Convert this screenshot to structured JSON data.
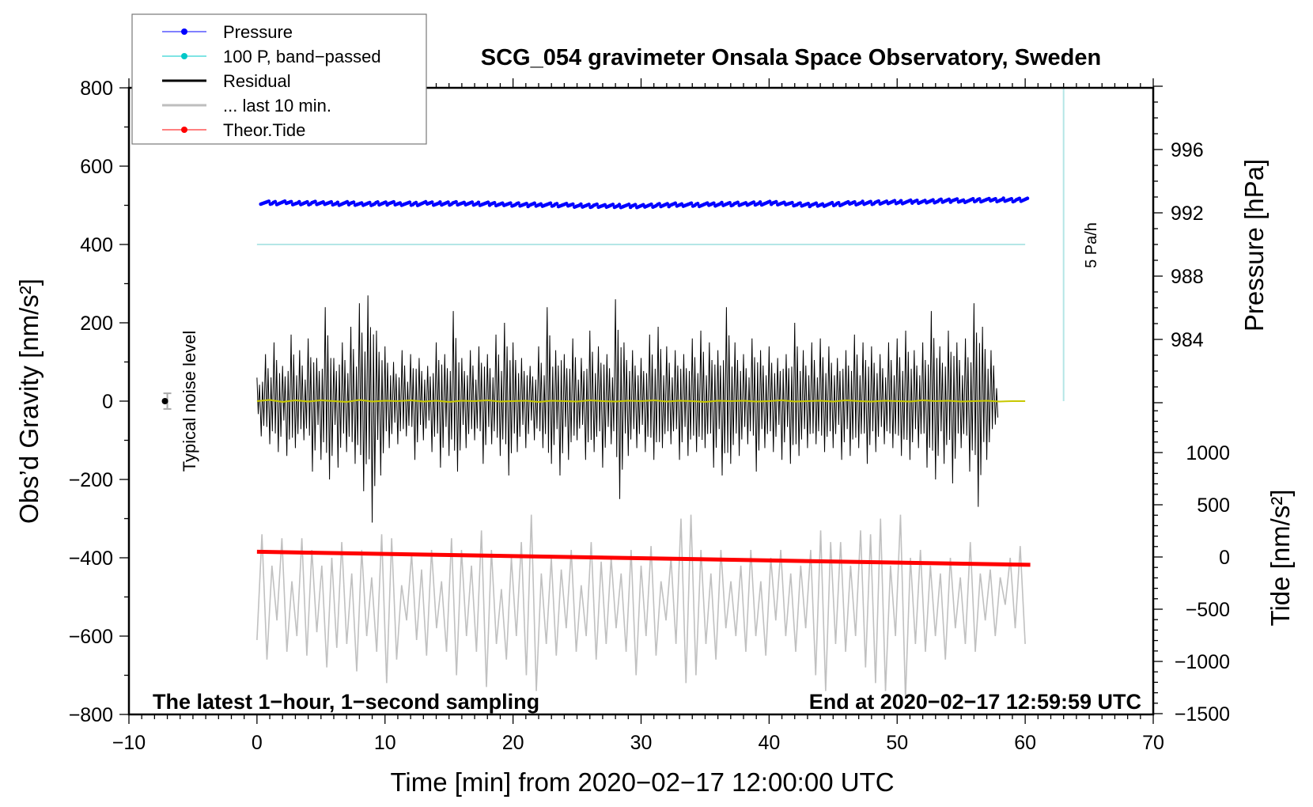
{
  "chart_data": {
    "type": "line",
    "title": "SCG_054 gravimeter Onsala Space Observatory, Sweden",
    "xlabel": "Time [min] from 2020−02−17 12:00:00 UTC",
    "ylabel": "Obs’d Gravity [nm/s²]",
    "ylabel_right_top": "Pressure [hPa]",
    "ylabel_right_bottom": "Tide [nm/s²]",
    "xlim": [
      -10,
      70
    ],
    "ylim": [
      -800,
      800
    ],
    "pressure_lim": [
      980,
      1000
    ],
    "tide_lim": [
      -1500,
      1500
    ],
    "x_ticks": [
      "−10",
      "0",
      "10",
      "20",
      "30",
      "40",
      "50",
      "60",
      "70"
    ],
    "x_tick_values": [
      -10,
      0,
      10,
      20,
      30,
      40,
      50,
      60,
      70
    ],
    "y_ticks": [
      "−800",
      "−600",
      "−400",
      "−200",
      "0",
      "200",
      "400",
      "600",
      "800"
    ],
    "y_tick_values": [
      -800,
      -600,
      -400,
      -200,
      0,
      200,
      400,
      600,
      800
    ],
    "pressure_ticks": [
      "996",
      "992",
      "988",
      "984"
    ],
    "pressure_tick_values": [
      996,
      992,
      988,
      984
    ],
    "tide_ticks": [
      "1000",
      "500",
      "0",
      "−500",
      "−1000",
      "−1500"
    ],
    "tide_tick_values": [
      1000,
      500,
      0,
      -500,
      -1000,
      -1500
    ],
    "legend": {
      "placement": "top-left",
      "entries": [
        {
          "label": "Pressure",
          "color": "#0000ff",
          "marker": true
        },
        {
          "label": "100 P, band−passed",
          "color": "#00c8c8",
          "marker": true
        },
        {
          "label": "Residual",
          "color": "#000000",
          "marker": false
        },
        {
          "label": "... last 10 min.",
          "color": "#bebebe",
          "marker": false
        },
        {
          "label": "Theor.Tide",
          "color": "#ff0000",
          "marker": true
        }
      ]
    },
    "annotations": {
      "bottom_left": "The latest 1−hour, 1−second sampling",
      "bottom_right": "End at 2020−02−17 12:59:59 UTC",
      "noise_label": "Typical noise level",
      "rate_label": "5 Pa/h"
    },
    "noise_level": {
      "x": -7,
      "y": 0,
      "err": 20
    },
    "rate_bar": {
      "x": 63,
      "y_from": 0,
      "y_to": 800
    },
    "bandpassed_pressure_line": {
      "x_from": 0,
      "x_to": 60,
      "y": 400
    },
    "series": {
      "pressure_hpa_per_minute": [
        992.65,
        992.62,
        992.64,
        992.6,
        992.62,
        992.6,
        992.58,
        992.6,
        992.56,
        992.58,
        992.6,
        992.58,
        992.56,
        992.6,
        992.58,
        992.6,
        992.57,
        992.58,
        992.56,
        992.55,
        992.52,
        992.5,
        992.52,
        992.5,
        992.48,
        992.45,
        992.45,
        992.42,
        992.44,
        992.43,
        992.45,
        992.47,
        992.5,
        992.52,
        992.5,
        992.52,
        992.55,
        992.56,
        992.55,
        992.6,
        992.62,
        992.6,
        992.52,
        992.5,
        992.52,
        992.55,
        992.6,
        992.62,
        992.64,
        992.65,
        992.68,
        992.7,
        992.72,
        992.75,
        992.78,
        992.76,
        992.8,
        992.8,
        992.82,
        992.8,
        992.84
      ],
      "residual_every_20s": [
        60,
        -90,
        120,
        -110,
        150,
        -130,
        90,
        -140,
        170,
        -120,
        130,
        -100,
        160,
        -180,
        110,
        -150,
        240,
        -200,
        110,
        -170,
        150,
        -130,
        190,
        -160,
        250,
        -230,
        270,
        -310,
        180,
        -190,
        140,
        -120,
        100,
        -110,
        130,
        -90,
        120,
        -150,
        110,
        -100,
        90,
        -130,
        150,
        -170,
        120,
        -140,
        230,
        -180,
        110,
        -120,
        130,
        -100,
        140,
        -160,
        120,
        -110,
        170,
        -140,
        200,
        -190,
        150,
        -130,
        110,
        -120,
        90,
        -100,
        140,
        -120,
        240,
        -160,
        130,
        -190,
        120,
        -150,
        160,
        -100,
        110,
        -150,
        180,
        -130,
        140,
        -170,
        120,
        -110,
        260,
        -250,
        150,
        -140,
        130,
        -120,
        110,
        -130,
        170,
        -150,
        190,
        -120,
        140,
        -110,
        130,
        -150,
        120,
        -140,
        160,
        -130,
        180,
        -120,
        150,
        -170,
        130,
        -190,
        240,
        -160,
        150,
        -140,
        120,
        -110,
        160,
        -180,
        130,
        -120,
        140,
        -130,
        110,
        -150,
        120,
        -160,
        200,
        -140,
        130,
        -120,
        150,
        -110,
        160,
        -130,
        140,
        -120,
        110,
        -150,
        130,
        -140,
        170,
        -120,
        150,
        -160,
        140,
        -130,
        120,
        -110,
        150,
        -120,
        160,
        -140,
        180,
        -150,
        130,
        -120,
        150,
        -170,
        230,
        -200,
        140,
        -160,
        180,
        -210,
        150,
        -120,
        160,
        -180,
        250,
        -270,
        190,
        -150,
        130,
        -60
      ],
      "residual_low_pass_every_minute": [
        0,
        3,
        -2,
        2,
        -1,
        2,
        0,
        -2,
        3,
        -1,
        1,
        0,
        2,
        -1,
        1,
        -2,
        1,
        0,
        2,
        -1,
        0,
        1,
        -2,
        1,
        0,
        -1,
        2,
        0,
        -1,
        1,
        0,
        2,
        -1,
        1,
        0,
        -2,
        1,
        0,
        1,
        -1,
        0,
        2,
        -1,
        0,
        1,
        -1,
        2,
        0,
        -1,
        1,
        0,
        -1,
        2,
        0,
        1,
        -1,
        0,
        1,
        -1,
        0,
        0
      ],
      "last_10_min_every_20s": [
        -610,
        -340,
        -660,
        -420,
        -560,
        -350,
        -640,
        -460,
        -600,
        -350,
        -650,
        -380,
        -590,
        -420,
        -680,
        -400,
        -630,
        -360,
        -620,
        -440,
        -690,
        -380,
        -600,
        -450,
        -640,
        -340,
        -720,
        -350,
        -660,
        -470,
        -560,
        -390,
        -610,
        -430,
        -650,
        -380,
        -580,
        -460,
        -640,
        -350,
        -700,
        -380,
        -600,
        -420,
        -640,
        -330,
        -730,
        -380,
        -620,
        -480,
        -660,
        -400,
        -600,
        -360,
        -700,
        -290,
        -740,
        -440,
        -620,
        -400,
        -650,
        -430,
        -580,
        -380,
        -640,
        -470,
        -600,
        -360,
        -660,
        -410,
        -620,
        -400,
        -580,
        -440,
        -640,
        -380,
        -700,
        -420,
        -600,
        -370,
        -650,
        -460,
        -560,
        -400,
        -620,
        -300,
        -720,
        -290,
        -700,
        -380,
        -620,
        -440,
        -660,
        -380,
        -580,
        -460,
        -600,
        -420,
        -640,
        -380,
        -600,
        -460,
        -650,
        -400,
        -560,
        -380,
        -600,
        -440,
        -640,
        -420,
        -580,
        -380,
        -700,
        -330,
        -740,
        -360,
        -620,
        -360,
        -640,
        -420,
        -600,
        -330,
        -680,
        -340,
        -720,
        -300,
        -740,
        -420,
        -600,
        -290,
        -760,
        -400,
        -620,
        -380,
        -640,
        -420,
        -600,
        -440,
        -660,
        -400,
        -580,
        -450,
        -620,
        -360,
        -640,
        -440,
        -560,
        -430,
        -600,
        -450,
        -520,
        -400,
        -580,
        -370,
        -620
      ]
    },
    "theoretical_tide_nm_s2": {
      "x": [
        0,
        60.4
      ],
      "y": [
        50,
        -75
      ]
    }
  }
}
